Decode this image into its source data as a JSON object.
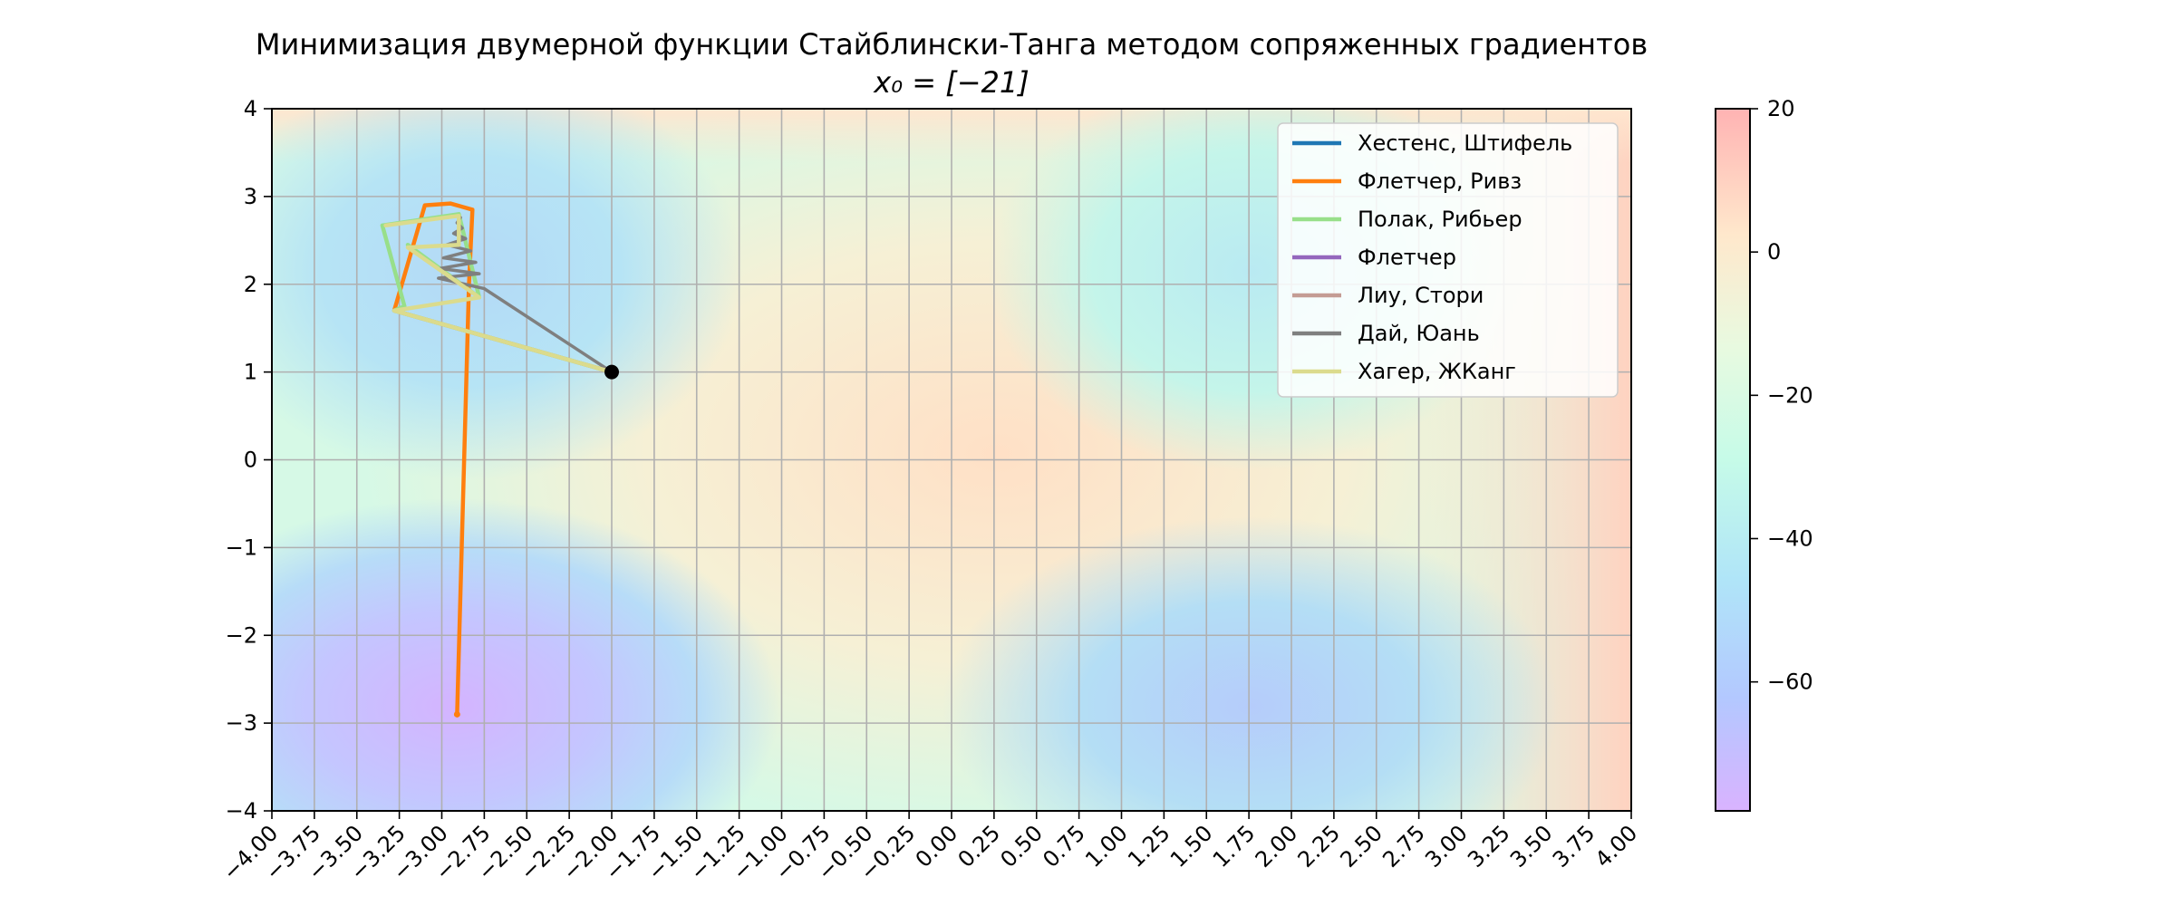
{
  "chart_data": {
    "type": "line",
    "title": "Минимизация двумерной функции Стайблински-Танга методом сопряженных градиентов",
    "subtitle": "x₀ = [−21]",
    "xlabel": "",
    "ylabel": "",
    "xlim": [
      -4,
      4
    ],
    "ylim": [
      -4,
      4
    ],
    "grid": true,
    "x_ticks": [
      "−4.00",
      "−3.75",
      "−3.50",
      "−3.25",
      "−3.00",
      "−2.75",
      "−2.50",
      "−2.25",
      "−2.00",
      "−1.75",
      "−1.50",
      "−1.25",
      "−1.00",
      "−0.75",
      "−0.50",
      "−0.25",
      "0.00",
      "0.25",
      "0.50",
      "0.75",
      "1.00",
      "1.25",
      "1.50",
      "1.75",
      "2.00",
      "2.25",
      "2.50",
      "2.75",
      "3.00",
      "3.25",
      "3.50",
      "3.75",
      "4.00"
    ],
    "y_ticks": [
      "−4",
      "−3",
      "−2",
      "−1",
      "0",
      "1",
      "2",
      "3",
      "4"
    ],
    "legend_position": "top-right",
    "background": "filled contour of the Styblinski–Tang function",
    "colorbar": {
      "range": [
        -78,
        20
      ],
      "ticks": [
        20,
        0,
        -20,
        -40,
        -60
      ],
      "tick_labels": [
        "20",
        "0",
        "−20",
        "−40",
        "−60"
      ],
      "colormap_colors": [
        "#d9b3ff",
        "#b3c8ff",
        "#b0e5f8",
        "#c6fbe8",
        "#e8fae0",
        "#ffe8cc",
        "#ffb3b3"
      ]
    },
    "start_point": {
      "x": -2,
      "y": 1
    },
    "series": [
      {
        "name": "Хестенс, Штифель",
        "color": "#1f77b4",
        "x": [
          -2.0,
          -2.0
        ],
        "y": [
          1.0,
          1.0
        ]
      },
      {
        "name": "Флетчер, Ривз",
        "color": "#ff7f0e",
        "x": [
          -2.0,
          -3.28,
          -3.1,
          -2.95,
          -2.82,
          -2.84,
          -2.91
        ],
        "y": [
          1.0,
          1.7,
          2.9,
          2.92,
          2.85,
          2.0,
          -2.9
        ]
      },
      {
        "name": "Полак, Рибьер",
        "color": "#98df8a",
        "x": [
          -2.0,
          -3.28,
          -3.22,
          -3.35,
          -2.9,
          -2.78,
          -3.2
        ],
        "y": [
          1.0,
          1.7,
          1.75,
          2.67,
          2.8,
          1.85,
          2.45
        ]
      },
      {
        "name": "Флетчер",
        "color": "#9467bd",
        "x": [
          -2.0,
          -2.0
        ],
        "y": [
          1.0,
          1.0
        ]
      },
      {
        "name": "Лиу, Стори",
        "color": "#c49c94",
        "x": [
          -2.0,
          -2.0
        ],
        "y": [
          1.0,
          1.0
        ]
      },
      {
        "name": "Дай, Юань",
        "color": "#7f7f7f",
        "x": [
          -2.0,
          -2.75,
          -3.02,
          -2.78,
          -3.01,
          -2.8,
          -2.99,
          -2.83,
          -2.97,
          -2.86,
          -2.93,
          -2.88,
          -2.91,
          -2.89
        ],
        "y": [
          1.0,
          1.95,
          2.07,
          2.12,
          2.18,
          2.25,
          2.3,
          2.38,
          2.45,
          2.52,
          2.58,
          2.64,
          2.7,
          2.76
        ]
      },
      {
        "name": "Хагер, ЖКанг",
        "color": "#dbdb8d",
        "x": [
          -2.0,
          -3.28,
          -2.78,
          -3.2,
          -2.9,
          -2.9,
          -3.33
        ],
        "y": [
          1.0,
          1.7,
          1.85,
          2.42,
          2.45,
          2.78,
          2.67
        ]
      }
    ]
  }
}
